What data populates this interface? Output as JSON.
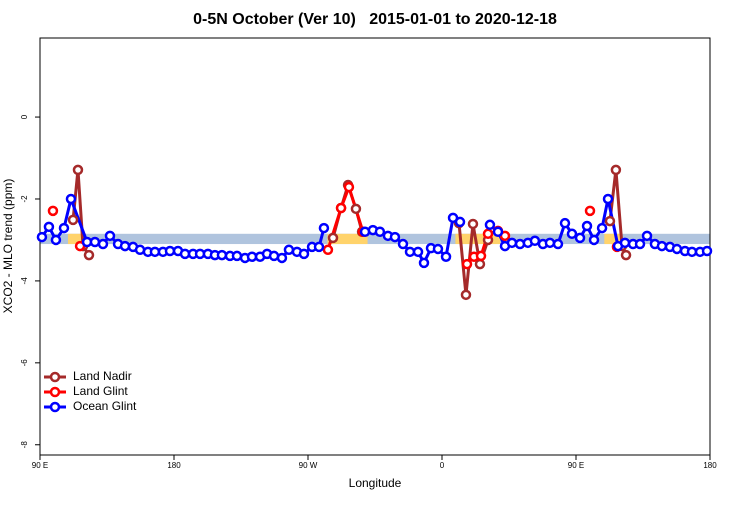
{
  "chart_data": {
    "type": "line",
    "title": "0-5N October (Ver 10)   2015-01-01 to 2020-12-18",
    "x_label": "Longitude",
    "y_label": "XCO2 - MLO trend (ppm)",
    "xlim": [
      90,
      540
    ],
    "ylim": [
      -8.25,
      1.93
    ],
    "xticks": [
      {
        "value": 90,
        "label": "90 E"
      },
      180,
      {
        "value": 270,
        "label": "90 W"
      },
      {
        "value": 360,
        "label": "0"
      },
      {
        "value": 450,
        "label": "90 E"
      },
      {
        "value": 540,
        "label": "180"
      }
    ],
    "yticks": [
      0,
      -2,
      -4,
      -6,
      -8
    ],
    "legend": "bottom-left",
    "reference_band": {
      "values": [
        -2.85,
        -3.1
      ],
      "color": "#b0c4de"
    },
    "land_bands": {
      "x": [
        [
          108.8,
          120.9
        ],
        [
          283,
          310
        ],
        [
          369,
          399
        ],
        [
          469,
          481
        ]
      ],
      "color": "#ffd36b"
    },
    "series": [
      {
        "name": "Land Nadir",
        "color": "#a52a2a",
        "x": [
          112.2,
          115.5,
          118.9,
          122.9,
          200,
          286.8,
          292.2,
          296.9,
          302.2,
          306.3,
          330,
          371.4,
          376.1,
          380.8,
          385.5,
          390.9,
          420,
          472.8,
          476.8,
          480.9,
          483.6
        ],
        "values": [
          -2.51,
          -1.29,
          -3.15,
          -3.37,
          null,
          -2.95,
          -2.22,
          -1.66,
          -2.24,
          -2.8,
          null,
          -2.59,
          -4.34,
          -2.61,
          -3.59,
          -3.0,
          null,
          -2.54,
          -1.29,
          -3.15,
          -3.37
        ]
      },
      {
        "name": "Land Glint",
        "color": "#ff0000",
        "x": [
          98.7,
          105,
          116.9,
          200,
          283.4,
          292.2,
          297.5,
          306.9,
          330,
          376.8,
          381.5,
          386.2,
          390.9,
          397.6,
          402.3,
          450,
          459.4,
          470,
          477.5
        ],
        "values": [
          -2.29,
          null,
          -3.15,
          null,
          -3.24,
          -2.22,
          -1.71,
          -2.8,
          null,
          -3.59,
          -3.41,
          -3.39,
          -2.85,
          -2.78,
          -2.9,
          null,
          -2.29,
          null,
          -3.17
        ]
      },
      {
        "name": "Ocean Glint",
        "color": "#0000ff",
        "x": [
          91.3,
          96.0,
          100.7,
          106.1,
          110.8,
          121.6,
          126.9,
          132.3,
          137.0,
          142.4,
          147.1,
          152.5,
          157.2,
          162.5,
          167.2,
          172.6,
          177.3,
          182.7,
          187.4,
          192.8,
          197.5,
          202.8,
          207.5,
          212.2,
          217.6,
          222.3,
          227.7,
          232.4,
          237.8,
          242.5,
          247.2,
          252.5,
          257.2,
          262.6,
          267.3,
          272.7,
          277.4,
          280.7,
          300,
          308.3,
          313.6,
          318.3,
          323.7,
          328.4,
          333.8,
          338.5,
          343.9,
          347.9,
          352.6,
          357.3,
          362.7,
          367.4,
          372.1,
          380,
          392.2,
          397.6,
          402.3,
          407.0,
          412.4,
          417.7,
          422.4,
          427.8,
          432.5,
          437.9,
          442.6,
          447.3,
          452.7,
          457.4,
          462.1,
          467.5,
          471.5,
          478.2,
          482.9,
          488.3,
          493.0,
          497.7,
          503.0,
          507.7,
          513.1,
          517.8,
          523.2,
          527.9,
          533.3,
          538.0
        ],
        "values": [
          -2.93,
          -2.68,
          -3.0,
          -2.71,
          -2.0,
          -3.05,
          -3.05,
          -3.1,
          -2.9,
          -3.1,
          -3.15,
          -3.17,
          -3.24,
          -3.29,
          -3.29,
          -3.29,
          -3.27,
          -3.27,
          -3.34,
          -3.34,
          -3.34,
          -3.34,
          -3.37,
          -3.37,
          -3.39,
          -3.39,
          -3.44,
          -3.41,
          -3.41,
          -3.34,
          -3.39,
          -3.44,
          -3.24,
          -3.29,
          -3.34,
          -3.17,
          -3.17,
          -2.71,
          null,
          -2.8,
          -2.76,
          -2.8,
          -2.9,
          -2.93,
          -3.1,
          -3.29,
          -3.29,
          -3.56,
          -3.2,
          -3.22,
          -3.41,
          -2.46,
          -2.56,
          null,
          -2.63,
          -2.8,
          -3.15,
          -3.07,
          -3.1,
          -3.07,
          -3.02,
          -3.1,
          -3.07,
          -3.1,
          -2.59,
          -2.85,
          -2.95,
          -2.66,
          -3.0,
          -2.71,
          -2.0,
          -3.15,
          -3.07,
          -3.1,
          -3.1,
          -2.9,
          -3.1,
          -3.15,
          -3.17,
          -3.22,
          -3.27,
          -3.29,
          -3.29,
          -3.27
        ]
      }
    ]
  }
}
